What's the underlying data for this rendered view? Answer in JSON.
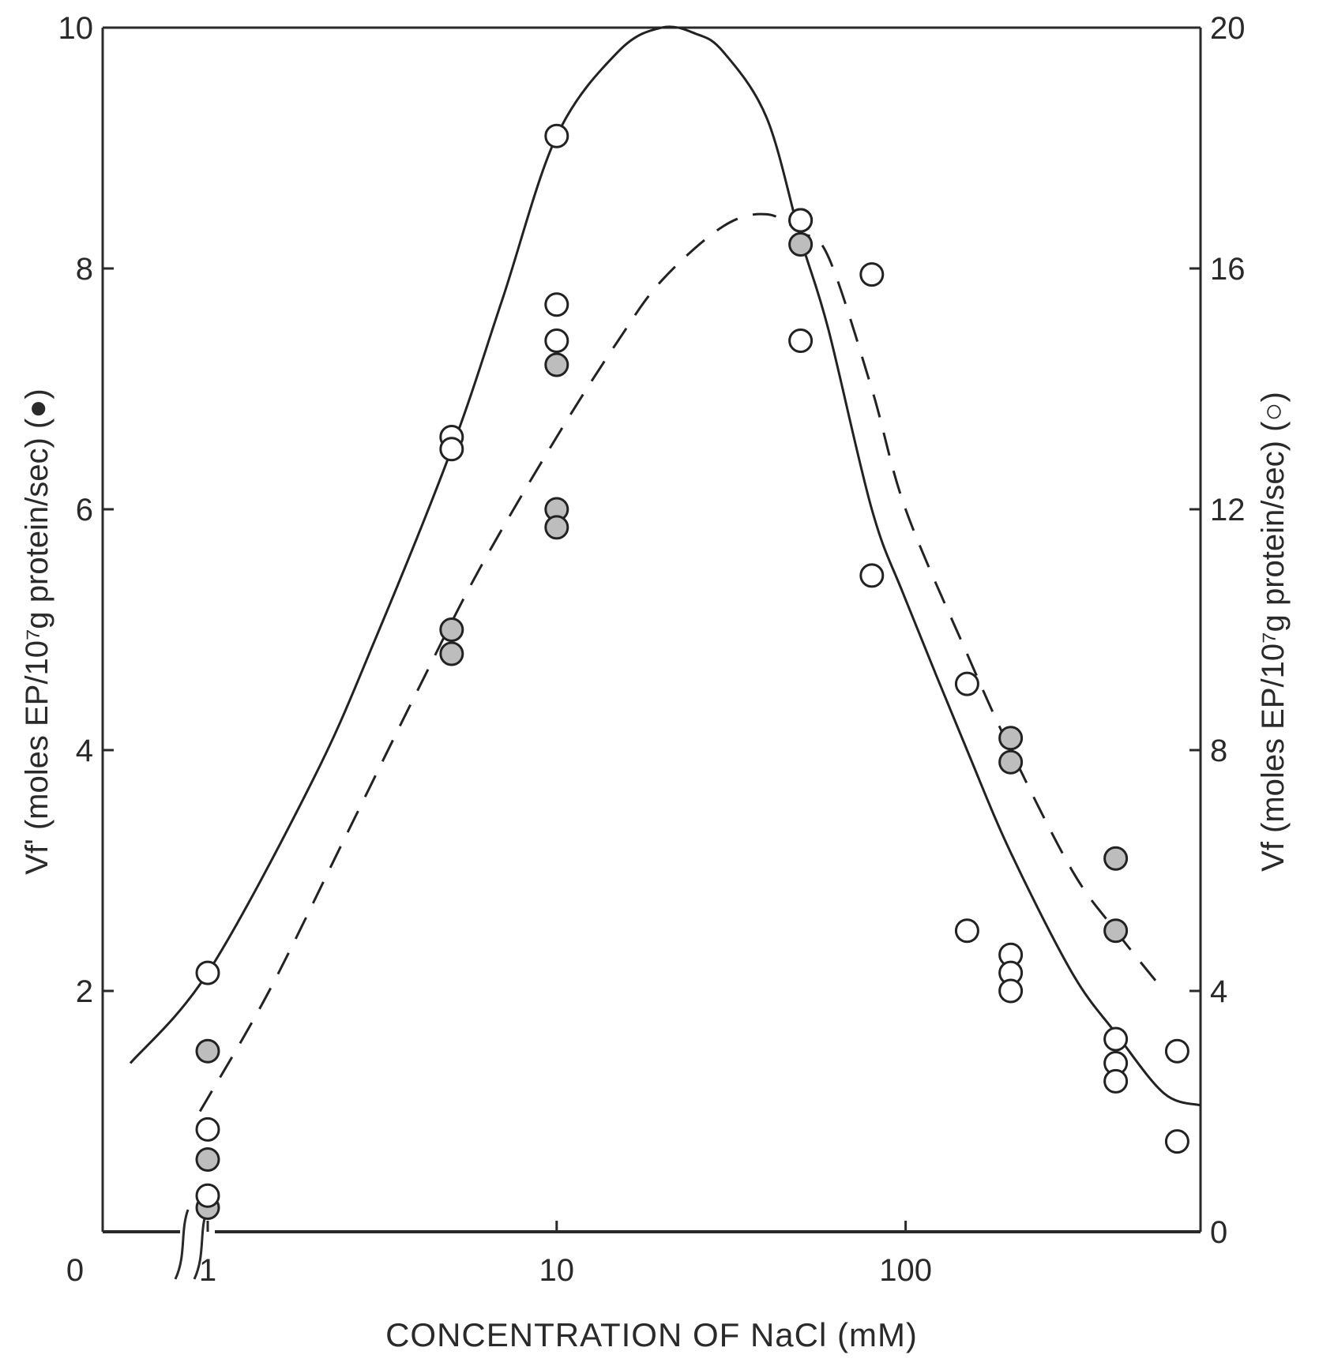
{
  "chart_data": {
    "type": "scatter",
    "xlabel": "CONCENTRATION OF NaCl (mM)",
    "x_scale": "log",
    "xlim": [
      0.5,
      700
    ],
    "x_ticks": [
      1,
      10,
      100
    ],
    "x_tick_labels": [
      "1",
      "10",
      "100"
    ],
    "x_zero_label": "0",
    "x_break": true,
    "y_left": {
      "label": "Vf' (moles EP/10⁷g protein/sec) (●)",
      "ylim": [
        0,
        10
      ],
      "ticks": [
        0,
        2,
        4,
        6,
        8,
        10
      ],
      "tick_labels": [
        "0",
        "2",
        "4",
        "6",
        "8",
        "10"
      ]
    },
    "y_right": {
      "label": "Vf (moles EP/10⁷g protein/sec) (○)",
      "ylim": [
        0,
        20
      ],
      "ticks": [
        0,
        4,
        8,
        12,
        16,
        20
      ],
      "tick_labels": [
        "0",
        "4",
        "8",
        "12",
        "16",
        "20"
      ]
    },
    "series": [
      {
        "marker": "filled-circle",
        "axis": "left",
        "line_style": "dashed",
        "points": [
          {
            "x": 1,
            "y": 1.5
          },
          {
            "x": 1,
            "y": 0.6
          },
          {
            "x": 1,
            "y": 0.2
          },
          {
            "x": 5,
            "y": 5.0
          },
          {
            "x": 5,
            "y": 4.8
          },
          {
            "x": 10,
            "y": 7.2
          },
          {
            "x": 10,
            "y": 6.0
          },
          {
            "x": 10,
            "y": 5.85
          },
          {
            "x": 50,
            "y": 8.4
          },
          {
            "x": 50,
            "y": 8.2
          },
          {
            "x": 200,
            "y": 4.1
          },
          {
            "x": 200,
            "y": 3.9
          },
          {
            "x": 400,
            "y": 3.1
          },
          {
            "x": 400,
            "y": 2.5
          }
        ],
        "curve": [
          {
            "x": 0.95,
            "y": 1.0
          },
          {
            "x": 1.5,
            "y": 2.0
          },
          {
            "x": 2.5,
            "y": 3.3
          },
          {
            "x": 4,
            "y": 4.5
          },
          {
            "x": 6,
            "y": 5.5
          },
          {
            "x": 10,
            "y": 6.6
          },
          {
            "x": 15,
            "y": 7.4
          },
          {
            "x": 20,
            "y": 7.9
          },
          {
            "x": 30,
            "y": 8.35
          },
          {
            "x": 40,
            "y": 8.45
          },
          {
            "x": 50,
            "y": 8.3
          },
          {
            "x": 60,
            "y": 8.1
          },
          {
            "x": 80,
            "y": 7.0
          },
          {
            "x": 100,
            "y": 6.0
          },
          {
            "x": 150,
            "y": 4.8
          },
          {
            "x": 200,
            "y": 4.0
          },
          {
            "x": 300,
            "y": 3.0
          },
          {
            "x": 400,
            "y": 2.5
          },
          {
            "x": 550,
            "y": 2.0
          }
        ]
      },
      {
        "marker": "open-circle",
        "axis": "right",
        "line_style": "solid",
        "points": [
          {
            "x": 1,
            "y": 4.3
          },
          {
            "x": 1,
            "y": 1.7
          },
          {
            "x": 1,
            "y": 0.6
          },
          {
            "x": 5,
            "y": 13.2
          },
          {
            "x": 5,
            "y": 13.0
          },
          {
            "x": 10,
            "y": 18.2
          },
          {
            "x": 10,
            "y": 15.4
          },
          {
            "x": 10,
            "y": 14.8
          },
          {
            "x": 50,
            "y": 16.8
          },
          {
            "x": 50,
            "y": 14.8
          },
          {
            "x": 80,
            "y": 15.9
          },
          {
            "x": 80,
            "y": 10.9
          },
          {
            "x": 150,
            "y": 9.1
          },
          {
            "x": 150,
            "y": 5.0
          },
          {
            "x": 200,
            "y": 4.6
          },
          {
            "x": 200,
            "y": 4.3
          },
          {
            "x": 200,
            "y": 4.0
          },
          {
            "x": 400,
            "y": 3.2
          },
          {
            "x": 400,
            "y": 2.8
          },
          {
            "x": 400,
            "y": 2.5
          },
          {
            "x": 600,
            "y": 3.0
          },
          {
            "x": 600,
            "y": 1.5
          }
        ],
        "curve": [
          {
            "x": 0.6,
            "y": 2.8
          },
          {
            "x": 1,
            "y": 4.3
          },
          {
            "x": 2,
            "y": 7.5
          },
          {
            "x": 3,
            "y": 9.8
          },
          {
            "x": 5,
            "y": 13.0
          },
          {
            "x": 7,
            "y": 15.5
          },
          {
            "x": 10,
            "y": 18.2
          },
          {
            "x": 15,
            "y": 19.6
          },
          {
            "x": 20,
            "y": 20.0
          },
          {
            "x": 25,
            "y": 19.9
          },
          {
            "x": 30,
            "y": 19.6
          },
          {
            "x": 40,
            "y": 18.5
          },
          {
            "x": 50,
            "y": 16.5
          },
          {
            "x": 60,
            "y": 15.0
          },
          {
            "x": 80,
            "y": 12.0
          },
          {
            "x": 100,
            "y": 10.5
          },
          {
            "x": 150,
            "y": 8.0
          },
          {
            "x": 200,
            "y": 6.3
          },
          {
            "x": 300,
            "y": 4.3
          },
          {
            "x": 400,
            "y": 3.3
          },
          {
            "x": 550,
            "y": 2.3
          },
          {
            "x": 700,
            "y": 2.1
          }
        ]
      }
    ]
  }
}
